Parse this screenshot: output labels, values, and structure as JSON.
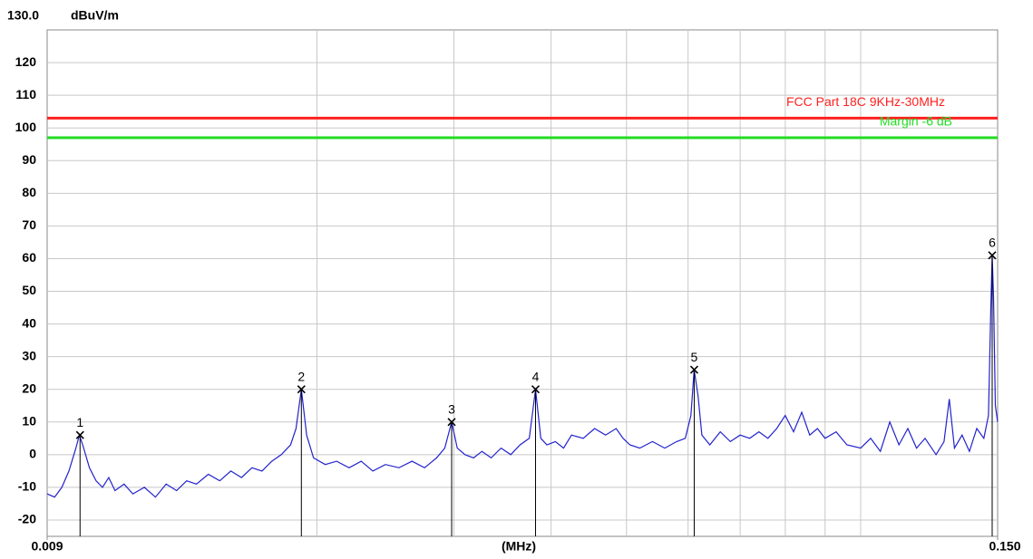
{
  "chart_data": {
    "type": "line",
    "y_label": "dBuV/m",
    "x_label": "(MHz)",
    "xscale": "log",
    "xlim": [
      0.009,
      0.15
    ],
    "xticks": [
      {
        "value": 0.009,
        "label": "0.009"
      },
      {
        "value": 0.15,
        "label": "0.150"
      }
    ],
    "xgrid": [
      0.02,
      0.03,
      0.04,
      0.05,
      0.06,
      0.07,
      0.08,
      0.09,
      0.1
    ],
    "ylim": [
      -25,
      130
    ],
    "yticks": [
      {
        "value": 130,
        "label": "130.0"
      },
      120,
      110,
      100,
      90,
      80,
      70,
      60,
      50,
      40,
      30,
      20,
      10,
      0,
      -10,
      -20
    ],
    "grid": true,
    "limits": [
      {
        "name": "FCC Part 18C 9KHz-30MHz",
        "value": 103,
        "color": "#ff2020"
      },
      {
        "name": "Margin -6 dB",
        "value": 97,
        "color": "#22dd22"
      }
    ],
    "x": [
      0.009,
      0.0092,
      0.0094,
      0.0096,
      0.0098,
      0.0099,
      0.01,
      0.0102,
      0.0104,
      0.0106,
      0.0108,
      0.011,
      0.0113,
      0.0116,
      0.012,
      0.0124,
      0.0128,
      0.0132,
      0.0136,
      0.014,
      0.0145,
      0.015,
      0.0155,
      0.016,
      0.0165,
      0.017,
      0.0175,
      0.018,
      0.0185,
      0.0188,
      0.0191,
      0.0194,
      0.0198,
      0.0205,
      0.0212,
      0.022,
      0.0228,
      0.0236,
      0.0245,
      0.0255,
      0.0265,
      0.0275,
      0.0285,
      0.0292,
      0.0298,
      0.0303,
      0.031,
      0.0318,
      0.0326,
      0.0335,
      0.0345,
      0.0355,
      0.0365,
      0.0375,
      0.0382,
      0.0388,
      0.0395,
      0.0405,
      0.0415,
      0.0425,
      0.044,
      0.0455,
      0.047,
      0.0485,
      0.0495,
      0.0505,
      0.052,
      0.054,
      0.056,
      0.058,
      0.0595,
      0.0605,
      0.0611,
      0.0618,
      0.0625,
      0.064,
      0.066,
      0.068,
      0.07,
      0.072,
      0.074,
      0.076,
      0.078,
      0.08,
      0.082,
      0.084,
      0.086,
      0.088,
      0.09,
      0.093,
      0.096,
      0.1,
      0.103,
      0.106,
      0.109,
      0.112,
      0.115,
      0.118,
      0.121,
      0.125,
      0.128,
      0.13,
      0.132,
      0.135,
      0.138,
      0.141,
      0.144,
      0.146,
      0.147,
      0.1476,
      0.1482,
      0.149,
      0.15
    ],
    "series": [
      {
        "color": "#2222cc",
        "values": [
          -12,
          -13,
          -10,
          -5,
          2,
          6,
          3,
          -4,
          -8,
          -10,
          -7,
          -11,
          -9,
          -12,
          -10,
          -13,
          -9,
          -11,
          -8,
          -9,
          -6,
          -8,
          -5,
          -7,
          -4,
          -5,
          -2,
          0,
          3,
          8,
          20,
          6,
          -1,
          -3,
          -2,
          -4,
          -2,
          -5,
          -3,
          -4,
          -2,
          -4,
          -1,
          2,
          10,
          2,
          0,
          -1,
          1,
          -1,
          2,
          0,
          3,
          5,
          20,
          5,
          3,
          4,
          2,
          6,
          5,
          8,
          6,
          8,
          5,
          3,
          2,
          4,
          2,
          4,
          5,
          12,
          26,
          18,
          6,
          3,
          7,
          4,
          6,
          5,
          7,
          5,
          8,
          12,
          7,
          13,
          6,
          8,
          5,
          7,
          3,
          2,
          5,
          1,
          10,
          3,
          8,
          2,
          5,
          0,
          4,
          17,
          2,
          6,
          1,
          8,
          5,
          12,
          45,
          61,
          48,
          15,
          10
        ]
      }
    ],
    "markers": [
      {
        "label": "1",
        "x": 0.00992,
        "value": 6
      },
      {
        "label": "2",
        "x": 0.0191,
        "value": 20
      },
      {
        "label": "3",
        "x": 0.0298,
        "value": 10
      },
      {
        "label": "4",
        "x": 0.0382,
        "value": 20
      },
      {
        "label": "5",
        "x": 0.0611,
        "value": 26
      },
      {
        "label": "6",
        "x": 0.1476,
        "value": 61
      }
    ]
  }
}
